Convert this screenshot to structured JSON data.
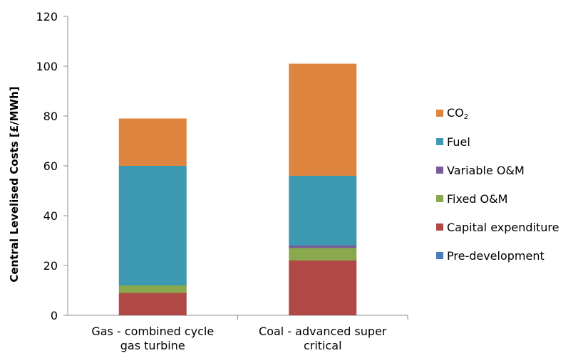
{
  "chart_data": {
    "type": "bar",
    "stacked": true,
    "ylabel": "Central Levelised Costs [£/MWh]",
    "ylim": [
      0,
      120
    ],
    "yticks": [
      0,
      20,
      40,
      60,
      80,
      100,
      120
    ],
    "grid": false,
    "legend_position": "right",
    "categories": [
      [
        "Gas - combined cycle",
        "gas turbine"
      ],
      [
        "Coal - advanced super",
        "critical"
      ]
    ],
    "series": [
      {
        "name": "Pre-development",
        "color": "#4a7ebb",
        "values": [
          0,
          0
        ]
      },
      {
        "name": "Capital expenditure",
        "color": "#b04945",
        "values": [
          9,
          22
        ]
      },
      {
        "name": "Fixed O&M",
        "color": "#8aa94e",
        "values": [
          3,
          5
        ]
      },
      {
        "name": "Variable O&M",
        "color": "#7a5a9a",
        "values": [
          0,
          1
        ]
      },
      {
        "name": "Fuel",
        "color": "#3d99b1",
        "values": [
          48,
          28
        ]
      },
      {
        "name": "CO2",
        "name_main": "CO",
        "name_sub": "2",
        "color": "#dd853f",
        "values": [
          19,
          45
        ]
      }
    ]
  },
  "legend": {
    "items": [
      {
        "main": "CO",
        "sub": "2",
        "color": "#dd853f"
      },
      {
        "main": "Fuel",
        "sub": "",
        "color": "#3d99b1"
      },
      {
        "main": "Variable O&M",
        "sub": "",
        "color": "#7a5a9a"
      },
      {
        "main": "Fixed O&M",
        "sub": "",
        "color": "#8aa94e"
      },
      {
        "main": "Capital expenditure",
        "sub": "",
        "color": "#b04945"
      },
      {
        "main": "Pre-development",
        "sub": "",
        "color": "#4a7ebb"
      }
    ]
  }
}
